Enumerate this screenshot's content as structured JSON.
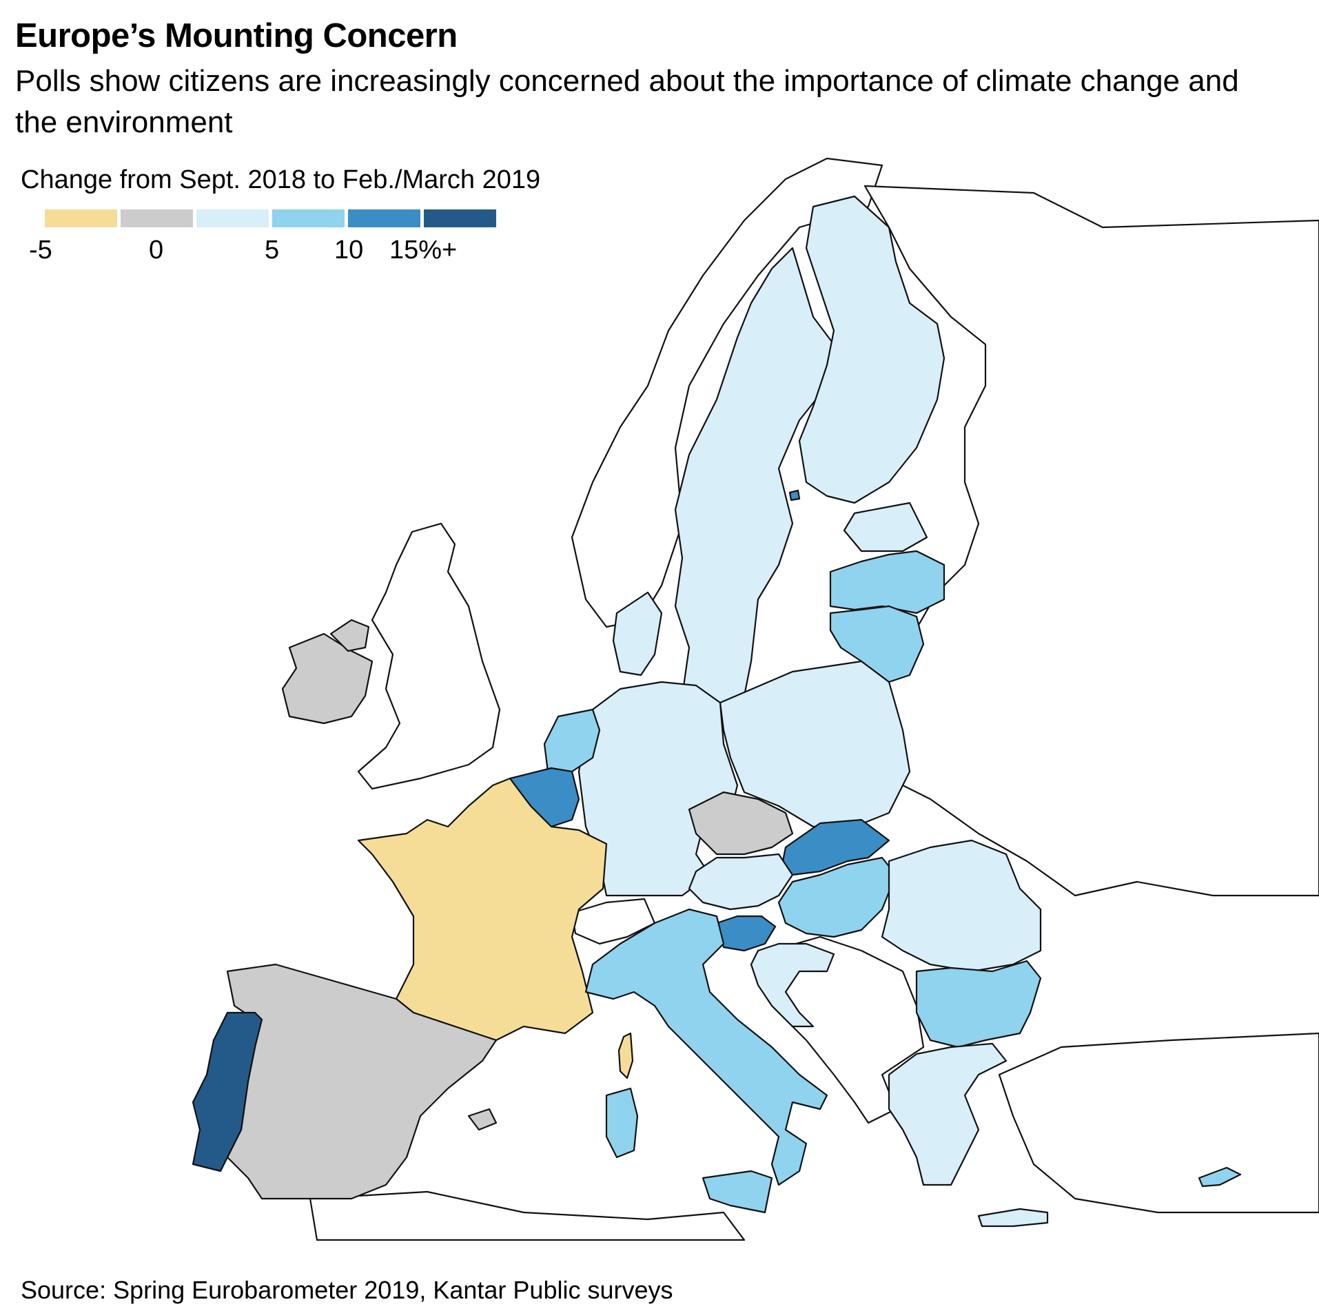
{
  "title": "Europe’s Mounting Concern",
  "subtitle": "Polls show citizens are increasingly concerned about the importance of climate change and the environment",
  "legend": {
    "title": "Change from Sept. 2018 to Feb./March 2019",
    "labels": [
      "-5",
      "0",
      "5",
      "10",
      "15%+"
    ],
    "colors": [
      "#f5dd98",
      "#cccccc",
      "#d8eef9",
      "#8fd3ee",
      "#3b8dc5",
      "#235a8a"
    ]
  },
  "source": "Source: Spring Eurobarometer 2019, Kantar Public surveys",
  "colors": {
    "none": "#ffffff",
    "outline": "#111111"
  }
}
